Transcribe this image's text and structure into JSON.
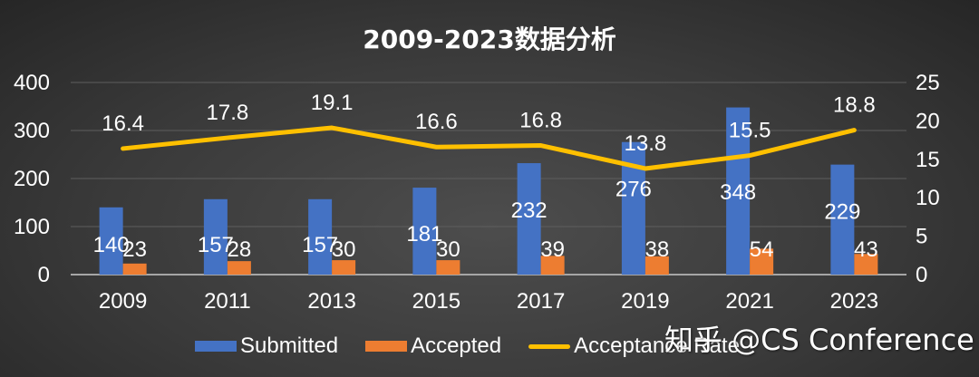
{
  "title": "2009-2023数据分析",
  "watermark": "知乎 @CS Conference",
  "colors": {
    "submitted": "#4472c4",
    "accepted": "#ed7d31",
    "rate": "#ffc000",
    "grid": "#5e5e5e",
    "axis": "#a6a6a6"
  },
  "legend": {
    "submitted": "Submitted",
    "accepted": "Accepted",
    "rate": "Acceptance Rate"
  },
  "axes": {
    "left_ticks": [
      "0",
      "100",
      "200",
      "300",
      "400"
    ],
    "right_ticks": [
      "0",
      "5",
      "10",
      "15",
      "20",
      "25"
    ]
  },
  "chart_data": {
    "type": "bar",
    "title": "2009-2023数据分析",
    "categories": [
      "2009",
      "2011",
      "2013",
      "2015",
      "2017",
      "2019",
      "2021",
      "2023"
    ],
    "series": [
      {
        "name": "Submitted",
        "type": "bar",
        "axis": "left",
        "values": [
          140,
          157,
          157,
          181,
          232,
          276,
          348,
          229
        ]
      },
      {
        "name": "Accepted",
        "type": "bar",
        "axis": "left",
        "values": [
          23,
          28,
          30,
          30,
          39,
          38,
          54,
          43
        ]
      },
      {
        "name": "Acceptance Rate",
        "type": "line",
        "axis": "right",
        "values": [
          16.4,
          17.8,
          19.1,
          16.6,
          16.8,
          13.8,
          15.5,
          18.8
        ]
      }
    ],
    "xlabel": "",
    "ylabel": "",
    "ylim": [
      0,
      400
    ],
    "y2lim": [
      0,
      25
    ],
    "grid": true,
    "legend_position": "bottom"
  }
}
